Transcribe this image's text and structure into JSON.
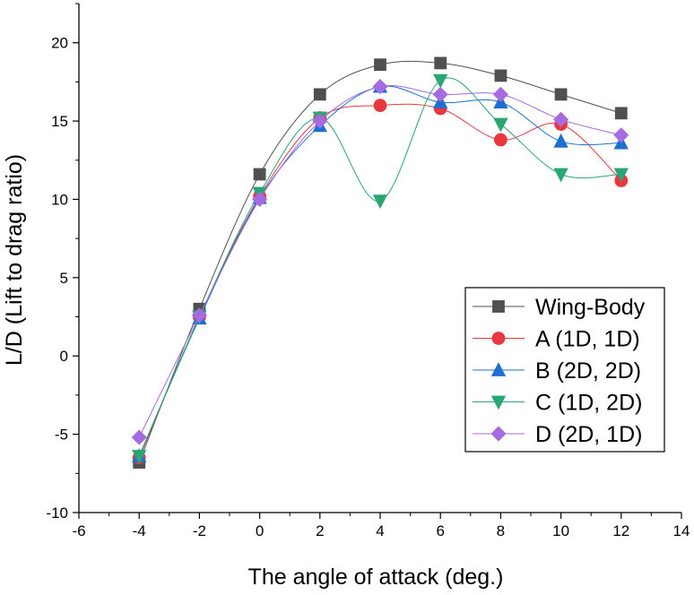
{
  "chart_data": {
    "type": "line",
    "xlabel": "The angle of attack (deg.)",
    "ylabel": "L/D (Lift to drag ratio)",
    "xlim": [
      -6,
      14
    ],
    "ylim": [
      -10,
      22.5
    ],
    "xticks": [
      -6,
      -4,
      -2,
      0,
      2,
      4,
      6,
      8,
      10,
      12,
      14
    ],
    "yticks": [
      -10,
      -5,
      0,
      5,
      10,
      15,
      20
    ],
    "x": [
      -4,
      -2,
      0,
      2,
      4,
      6,
      8,
      10,
      12
    ],
    "grid": false,
    "legend_position": "lower-right",
    "series": [
      {
        "name": "Wing-Body",
        "color": "#505050",
        "marker": "square",
        "values": [
          -6.8,
          3.0,
          11.6,
          16.7,
          18.6,
          18.7,
          17.9,
          16.7,
          15.5
        ]
      },
      {
        "name": "A (1D, 1D)",
        "color": "#e8383d",
        "marker": "circle",
        "values": [
          -6.5,
          2.5,
          10.2,
          15.2,
          16.0,
          15.8,
          13.8,
          14.8,
          11.2
        ]
      },
      {
        "name": "B (2D, 2D)",
        "color": "#1f6fd1",
        "marker": "triangle-up",
        "values": [
          -6.4,
          2.4,
          10.1,
          14.7,
          17.2,
          16.2,
          16.2,
          13.7,
          13.6
        ]
      },
      {
        "name": "C (1D, 2D)",
        "color": "#2aa574",
        "marker": "triangle-down",
        "values": [
          -6.4,
          2.5,
          10.4,
          15.2,
          9.9,
          17.6,
          14.8,
          11.6,
          11.6
        ]
      },
      {
        "name": "D (2D, 1D)",
        "color": "#a66be0",
        "marker": "diamond",
        "values": [
          -5.2,
          2.6,
          10.0,
          15.0,
          17.2,
          16.7,
          16.7,
          15.1,
          14.1
        ]
      }
    ]
  }
}
